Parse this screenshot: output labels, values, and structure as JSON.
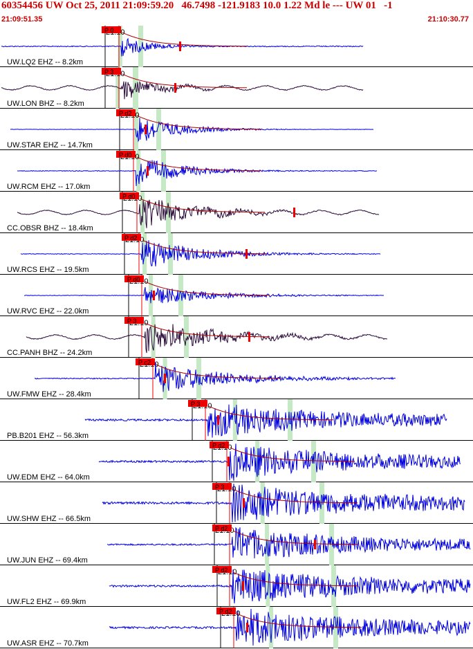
{
  "header": {
    "title": "60354456 UW Oct 25, 2011 21:09:59.20   46.7498 -121.9183 10.0 1.22 Md le --- UW 01   -1",
    "start_time": "21:09:51.35",
    "end_time": "21:10:30.77"
  },
  "colors": {
    "header_text": "#cc0000",
    "trace_ehz": "#0000dd",
    "trace_bhz": "#2a0a3a",
    "pick_box": "#ee0000",
    "coda_curve": "#b00000",
    "window": "#c5e8c5",
    "minute_line": "#000000"
  },
  "chart_data": {
    "type": "seismogram",
    "title": "60354456 UW Oct 25, 2011 21:09:59.20   46.7498 -121.9183 10.0 1.22 Md le --- UW 01   -1",
    "x_axis": {
      "start": "21:09:51.35",
      "end": "21:10:30.77",
      "minute_mark": "21:10"
    },
    "channels": [
      {
        "station": "UW.LQ2 EHZ -- 8.2km",
        "pick_label": "P 0",
        "pick": "P",
        "amp": 0.3,
        "noise": 0.06,
        "onset": 0.12
      },
      {
        "station": "UW.LON BHZ -- 8.2km",
        "pick_label": "P 3",
        "pick": "P",
        "amp": 0.32,
        "noise": 0.05,
        "onset": 0.12
      },
      {
        "station": "UW.STAR EHZ -- 14.7km",
        "pick_label": "P d2",
        "pick": "P",
        "amp": 0.45,
        "noise": 0.02,
        "onset": 0.2
      },
      {
        "station": "UW.RCM EHZ -- 17.0km",
        "pick_label": "P d0",
        "pick": "P",
        "amp": 0.45,
        "noise": 0.04,
        "onset": 0.21
      },
      {
        "station": "CC.OBSR BHZ -- 18.4km",
        "pick_label": "P d0",
        "pick": "P",
        "amp": 0.5,
        "noise": 0.04,
        "onset": 0.23
      },
      {
        "station": "UW.RCS EHZ -- 19.5km",
        "pick_label": "P d2",
        "pick": "P",
        "amp": 0.45,
        "noise": 0.04,
        "onset": 0.24
      },
      {
        "station": "UW.RVC EHZ -- 22.0km",
        "pick_label": "P d0",
        "pick": "P",
        "amp": 0.3,
        "noise": 0.03,
        "onset": 0.26
      },
      {
        "station": "CC.PANH BHZ -- 24.2km",
        "pick_label": "P 3",
        "pick": "P",
        "amp": 0.48,
        "noise": 0.05,
        "onset": 0.27
      },
      {
        "station": "UW.FMW EHZ -- 28.4km",
        "pick_label": "P c2",
        "pick": "P",
        "amp": 0.45,
        "noise": 0.06,
        "onset": 0.31
      },
      {
        "station": "PB.B201 EHZ -- 56.3km",
        "pick_label": "P 3",
        "pick": "P",
        "amp": 0.4,
        "noise": 0.12,
        "onset": 0.57
      },
      {
        "station": "UW.EDM EHZ -- 64.0km",
        "pick_label": "P d2",
        "pick": "P",
        "amp": 0.42,
        "noise": 0.12,
        "onset": 0.63
      },
      {
        "station": "UW.SHW EHZ -- 66.5km",
        "pick_label": "P 3",
        "pick": "P",
        "amp": 0.42,
        "noise": 0.14,
        "onset": 0.66
      },
      {
        "station": "UW.JUN EHZ -- 69.4km",
        "pick_label": "P d2",
        "pick": "P",
        "amp": 0.4,
        "noise": 0.1,
        "onset": 0.68
      },
      {
        "station": "UW.FL2 EHZ -- 69.9km",
        "pick_label": "P d2",
        "pick": "P",
        "amp": 0.42,
        "noise": 0.12,
        "onset": 0.69
      },
      {
        "station": "UW.ASR EHZ -- 70.7km",
        "pick_label": "P d2",
        "pick": "P",
        "amp": 0.42,
        "noise": 0.12,
        "onset": 0.71
      }
    ]
  }
}
